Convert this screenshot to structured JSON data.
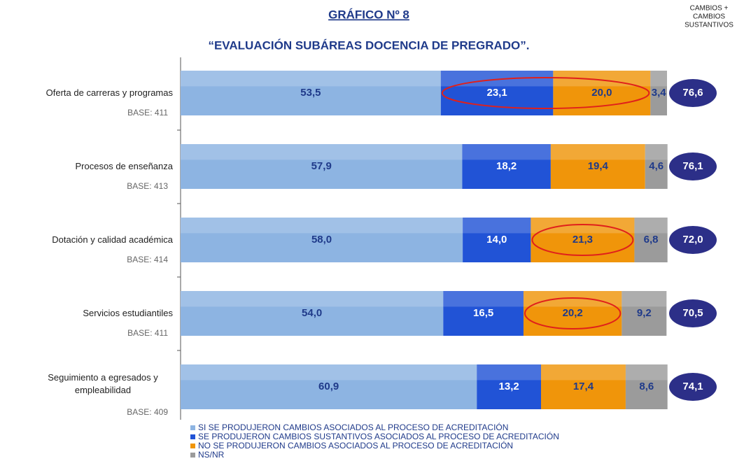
{
  "chart_data": {
    "type": "stacked_barh",
    "title": "GRÁFICO Nº 8",
    "subtitle": "“EVALUACIÓN SUBÁREAS DOCENCIA DE PREGRADO”.",
    "totals_title": [
      "CAMBIOS +",
      "CAMBIOS",
      "SUSTANTIVOS"
    ],
    "categories": [
      "Oferta de carreras y programas",
      "Procesos de enseñanza",
      "Dotación y calidad académica",
      "Servicios estudiantiles",
      "Seguimiento a egresados y empleabilidad"
    ],
    "bases": [
      "BASE: 411",
      "BASE: 413",
      "BASE: 414",
      "BASE: 411",
      "BASE: 409"
    ],
    "xlim": [
      0,
      100
    ],
    "series": [
      {
        "name": "SI SE PRODUJERON CAMBIOS ASOCIADOS AL PROCESO DE ACREDITACIÓN",
        "color": "#8db4e2",
        "label_color": "#1f3a8a",
        "values": [
          53.5,
          57.9,
          58.0,
          54.0,
          60.9
        ],
        "value_labels": [
          "53,5",
          "57,9",
          "58,0",
          "54,0",
          "60,9"
        ]
      },
      {
        "name": "SE PRODUJERON CAMBIOS SUSTANTIVOS ASOCIADOS AL PROCESO DE ACREDITACIÓN",
        "color": "#2153d6",
        "label_color": "#ffffff",
        "values": [
          23.1,
          18.2,
          14.0,
          16.5,
          13.2
        ],
        "value_labels": [
          "23,1",
          "18,2",
          "14,0",
          "16,5",
          "13,2"
        ]
      },
      {
        "name": "NO SE PRODUJERON CAMBIOS ASOCIADOS AL PROCESO DE ACREDITACIÓN",
        "color": "#f0950a",
        "label_color": "#1f3a8a",
        "values": [
          20.0,
          19.4,
          21.3,
          20.2,
          17.4
        ],
        "value_labels": [
          "20,0",
          "19,4",
          "21,3",
          "20,2",
          "17,4"
        ]
      },
      {
        "name": "NS/NR",
        "color": "#9b9b9b",
        "label_color": "#1f3a8a",
        "values": [
          3.4,
          4.6,
          6.8,
          9.2,
          8.6
        ],
        "value_labels": [
          "3,4",
          "4,6",
          "6,8",
          "9,2",
          "8,6"
        ]
      }
    ],
    "totals": {
      "color": "#2c2f88",
      "values": [
        76.6,
        76.1,
        72.0,
        70.5,
        74.1
      ],
      "value_labels": [
        "76,6",
        "76,1",
        "72,0",
        "70,5",
        "74,1"
      ]
    },
    "highlights": [
      {
        "category": 0,
        "series": [
          1,
          2
        ]
      },
      {
        "category": 2,
        "series": [
          2
        ]
      },
      {
        "category": 3,
        "series": [
          2
        ]
      }
    ],
    "highlight_color": "#e0201b"
  }
}
